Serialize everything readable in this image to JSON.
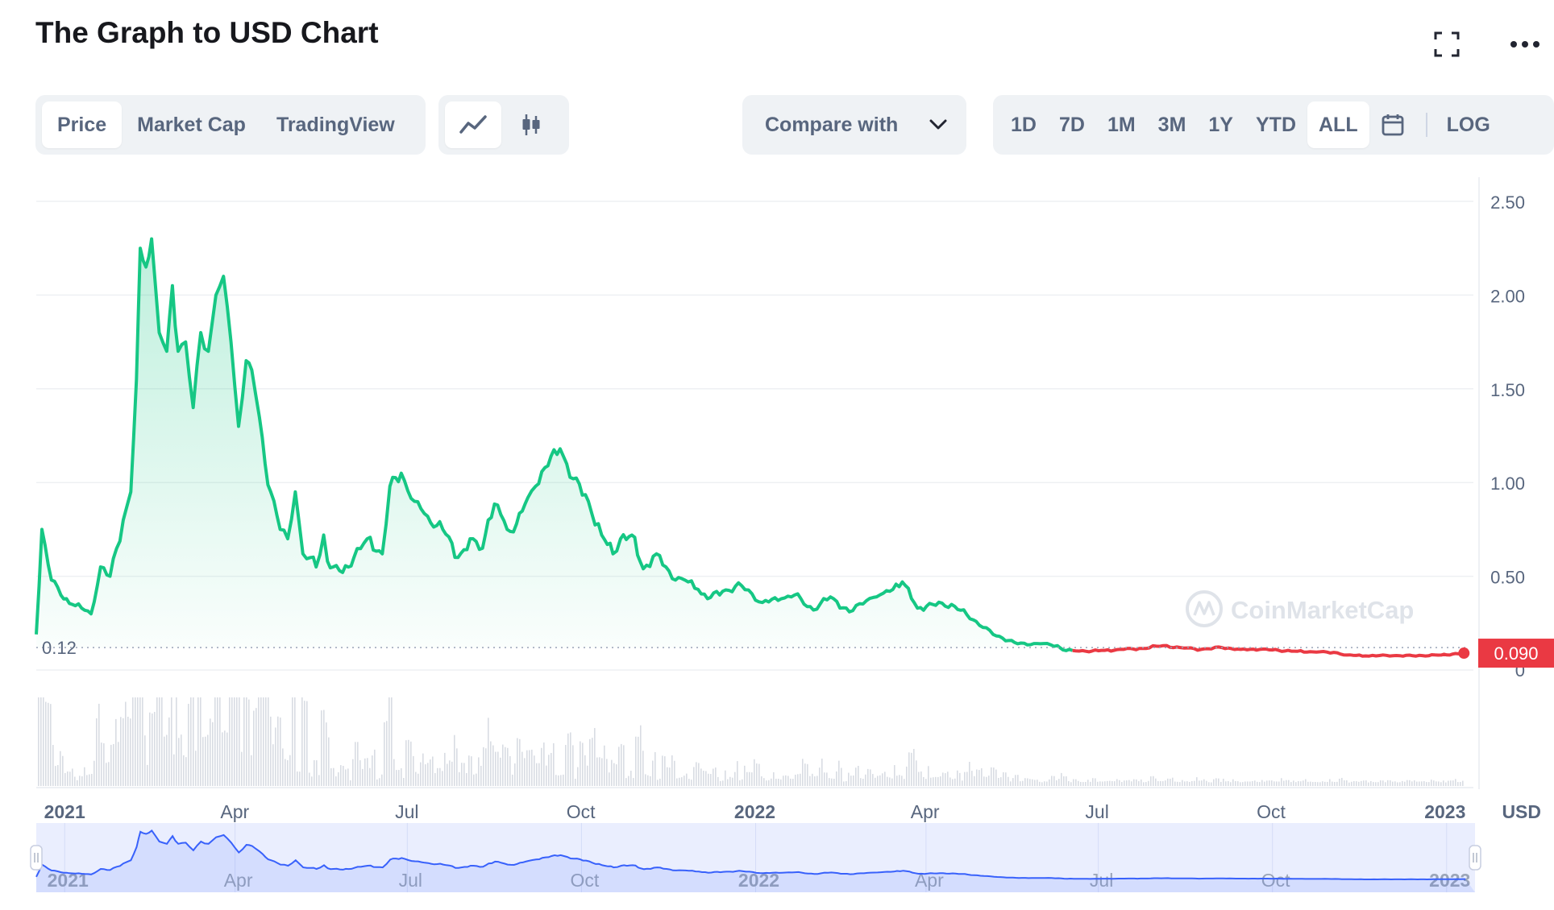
{
  "title": "The Graph to USD Chart",
  "icons": {
    "fullscreen": "fullscreen-icon",
    "more": "more-horizontal-icon",
    "line": "line-chart-icon",
    "candle": "candlestick-icon",
    "calendar": "calendar-icon",
    "chevron": "chevron-down-icon"
  },
  "tabs": [
    {
      "label": "Price",
      "active": true
    },
    {
      "label": "Market Cap",
      "active": false
    },
    {
      "label": "TradingView",
      "active": false
    }
  ],
  "compare_label": "Compare with",
  "ranges": [
    {
      "label": "1D",
      "active": false
    },
    {
      "label": "7D",
      "active": false
    },
    {
      "label": "1M",
      "active": false
    },
    {
      "label": "3M",
      "active": false
    },
    {
      "label": "1Y",
      "active": false
    },
    {
      "label": "YTD",
      "active": false
    },
    {
      "label": "ALL",
      "active": true
    }
  ],
  "log_label": "LOG",
  "watermark": "CoinMarketCap",
  "colors": {
    "up": "#16c784",
    "down": "#ea3943",
    "navigator": "#3861fb",
    "muted": "#58667e"
  },
  "chart_data": {
    "type": "area",
    "currency_label": "USD",
    "x": [
      "2020-12-17",
      "2020-12-20",
      "2020-12-25",
      "2020-12-30",
      "2021-01-05",
      "2021-01-10",
      "2021-01-15",
      "2021-01-20",
      "2021-01-25",
      "2021-02-01",
      "2021-02-05",
      "2021-02-08",
      "2021-02-10",
      "2021-02-13",
      "2021-02-16",
      "2021-02-20",
      "2021-02-24",
      "2021-02-27",
      "2021-03-02",
      "2021-03-06",
      "2021-03-10",
      "2021-03-14",
      "2021-03-18",
      "2021-03-22",
      "2021-03-26",
      "2021-03-30",
      "2021-04-03",
      "2021-04-07",
      "2021-04-10",
      "2021-04-14",
      "2021-04-17",
      "2021-04-20",
      "2021-04-25",
      "2021-04-29",
      "2021-05-03",
      "2021-05-07",
      "2021-05-11",
      "2021-05-14",
      "2021-05-18",
      "2021-05-20",
      "2021-05-23",
      "2021-05-28",
      "2021-06-03",
      "2021-06-10",
      "2021-06-18",
      "2021-06-22",
      "2021-06-28",
      "2021-07-05",
      "2021-07-12",
      "2021-07-20",
      "2021-07-28",
      "2021-08-05",
      "2021-08-10",
      "2021-08-13",
      "2021-08-18",
      "2021-08-23",
      "2021-08-28",
      "2021-09-03",
      "2021-09-07",
      "2021-09-12",
      "2021-09-20",
      "2021-09-27",
      "2021-10-05",
      "2021-10-12",
      "2021-10-18",
      "2021-10-22",
      "2021-10-28",
      "2021-11-03",
      "2021-11-10",
      "2021-11-15",
      "2021-11-20",
      "2021-11-25",
      "2021-12-02",
      "2021-12-07",
      "2021-12-15",
      "2021-12-25",
      "2022-01-05",
      "2022-01-15",
      "2022-01-22",
      "2022-02-01",
      "2022-02-10",
      "2022-02-20",
      "2022-03-01",
      "2022-03-10",
      "2022-03-20",
      "2022-03-28",
      "2022-04-05",
      "2022-04-15",
      "2022-04-28",
      "2022-05-07",
      "2022-05-12",
      "2022-05-20",
      "2022-06-01",
      "2022-06-10",
      "2022-06-13",
      "2022-06-18",
      "2022-06-25",
      "2022-07-05",
      "2022-07-15",
      "2022-07-25",
      "2022-08-05",
      "2022-08-14",
      "2022-08-25",
      "2022-09-05",
      "2022-09-15",
      "2022-09-25",
      "2022-10-05",
      "2022-10-15",
      "2022-10-25",
      "2022-11-05",
      "2022-11-10",
      "2022-11-20",
      "2022-12-01",
      "2022-12-15",
      "2022-12-30",
      "2023-01-05",
      "2023-01-11"
    ],
    "y": [
      0.19,
      0.75,
      0.48,
      0.4,
      0.35,
      0.33,
      0.3,
      0.55,
      0.5,
      0.8,
      0.95,
      1.55,
      2.25,
      2.15,
      2.3,
      1.8,
      1.7,
      2.05,
      1.7,
      1.75,
      1.4,
      1.8,
      1.7,
      2.0,
      2.1,
      1.75,
      1.3,
      1.65,
      1.6,
      1.35,
      1.1,
      0.95,
      0.75,
      0.7,
      0.95,
      0.62,
      0.6,
      0.55,
      0.72,
      0.58,
      0.55,
      0.52,
      0.6,
      0.7,
      0.62,
      0.98,
      1.05,
      0.9,
      0.82,
      0.75,
      0.6,
      0.7,
      0.65,
      0.8,
      0.88,
      0.75,
      0.78,
      0.92,
      0.98,
      1.08,
      1.18,
      1.02,
      0.9,
      0.72,
      0.62,
      0.7,
      0.72,
      0.54,
      0.62,
      0.55,
      0.48,
      0.48,
      0.43,
      0.38,
      0.42,
      0.45,
      0.36,
      0.38,
      0.4,
      0.32,
      0.39,
      0.31,
      0.37,
      0.41,
      0.47,
      0.33,
      0.35,
      0.35,
      0.26,
      0.19,
      0.17,
      0.14,
      0.14,
      0.13,
      0.107,
      0.104,
      0.1,
      0.105,
      0.11,
      0.115,
      0.13,
      0.12,
      0.11,
      0.12,
      0.11,
      0.11,
      0.105,
      0.1,
      0.096,
      0.092,
      0.08,
      0.075,
      0.078,
      0.076,
      0.08,
      0.085,
      0.09
    ],
    "down_from_index": 95,
    "ylim": [
      0,
      2.5
    ],
    "yticks": [
      0,
      0.5,
      1.0,
      1.5,
      2.0,
      2.5
    ],
    "ytick_labels": [
      "0",
      "0.50",
      "1.00",
      "1.50",
      "2.00",
      "2.50"
    ],
    "xlim": [
      "2020-12-17",
      "2023-01-16"
    ],
    "xticks": [
      {
        "date": "2021-01-01",
        "label": "2021",
        "bold": true
      },
      {
        "date": "2021-04-01",
        "label": "Apr",
        "bold": false
      },
      {
        "date": "2021-07-01",
        "label": "Jul",
        "bold": false
      },
      {
        "date": "2021-10-01",
        "label": "Oct",
        "bold": false
      },
      {
        "date": "2022-01-01",
        "label": "2022",
        "bold": true
      },
      {
        "date": "2022-04-01",
        "label": "Apr",
        "bold": false
      },
      {
        "date": "2022-07-01",
        "label": "Jul",
        "bold": false
      },
      {
        "date": "2022-10-01",
        "label": "Oct",
        "bold": false
      },
      {
        "date": "2023-01-01",
        "label": "2023",
        "bold": true
      }
    ],
    "reference_label": "0.12",
    "reference_value": 0.12,
    "current_label": "0.090",
    "current_value": 0.09,
    "grid": true,
    "volume_bars": true
  }
}
